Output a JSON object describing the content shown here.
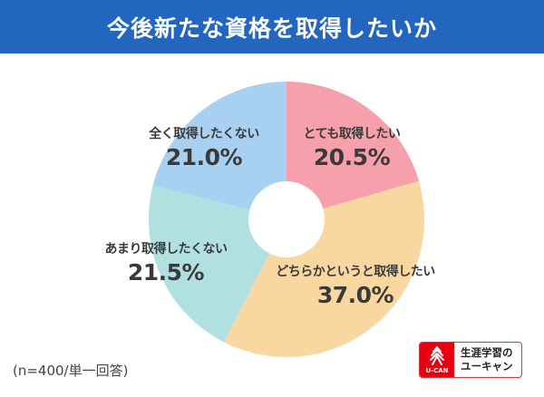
{
  "header": {
    "title": "今後新たな資格を取得したいか"
  },
  "colors": {
    "header_bg": "#2266c0",
    "slice_very_want": "#f5a0aa",
    "slice_somewhat_want": "#f8d8a0",
    "slice_not_really": "#b0e0e0",
    "slice_not_at_all": "#a8d0f0",
    "logo_red": "#e60012"
  },
  "chart_data": {
    "type": "pie",
    "title": "今後新たな資格を取得したいか",
    "donut": true,
    "start_angle": "12 o'clock, clockwise",
    "categories": [
      "とても取得したい",
      "どちらかというと取得したい",
      "あまり取得したくない",
      "全く取得したくない"
    ],
    "values": [
      20.5,
      37.0,
      21.5,
      21.0
    ],
    "labels": [
      "20.5%",
      "37.0%",
      "21.5%",
      "21.0%"
    ],
    "unit": "%",
    "note": "(n=400/単一回答)"
  },
  "slices": [
    {
      "name": "とても取得したい",
      "pct": "20.5%"
    },
    {
      "name": "どちらかというと取得したい",
      "pct": "37.0%"
    },
    {
      "name": "あまり取得したくない",
      "pct": "21.5%"
    },
    {
      "name": "全く取得したくない",
      "pct": "21.0%"
    }
  ],
  "footnote": "(n=400/単一回答)",
  "logo": {
    "brand": "U-CAN",
    "line1": "生涯学習の",
    "line2": "ユーキャン"
  }
}
